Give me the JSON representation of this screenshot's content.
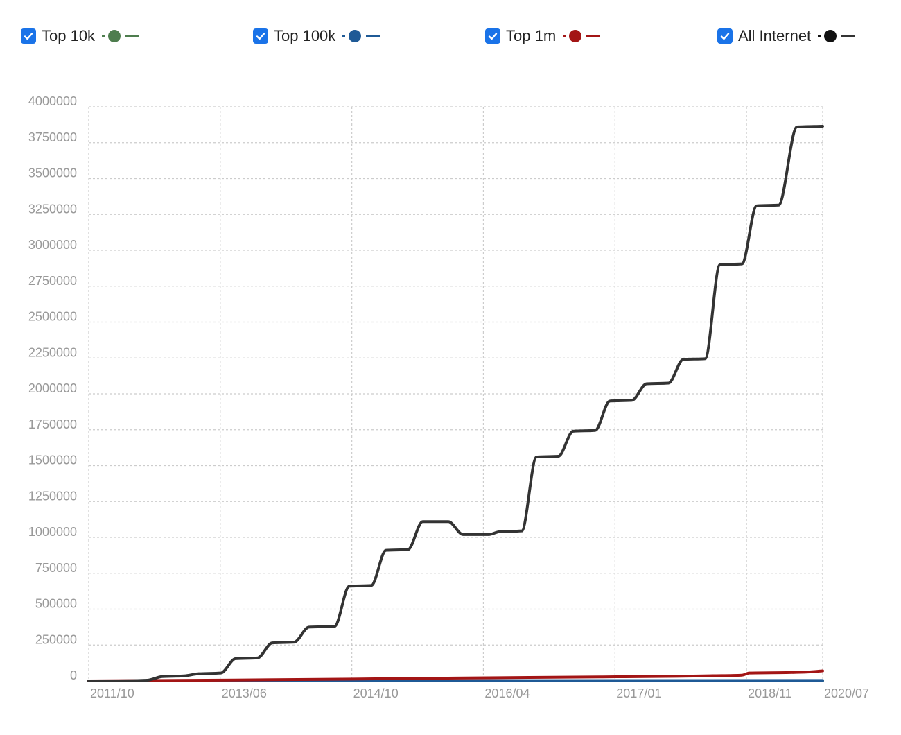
{
  "legend": [
    {
      "label": "Top 10k",
      "color": "#4e7d4e"
    },
    {
      "label": "Top 100k",
      "color": "#1f5a96"
    },
    {
      "label": "Top 1m",
      "color": "#a31515"
    },
    {
      "label": "All Internet",
      "color": "#111111"
    }
  ],
  "chart_data": {
    "type": "line",
    "title": "",
    "xlabel": "",
    "ylabel": "",
    "ylim": [
      0,
      4000000
    ],
    "xlim": [
      0,
      1
    ],
    "grid": true,
    "legend_position": "top",
    "y_ticks": [
      {
        "label": "4000000",
        "value": 4000000
      },
      {
        "label": "3750000",
        "value": 3750000
      },
      {
        "label": "3500000",
        "value": 3500000
      },
      {
        "label": "3250000",
        "value": 3250000
      },
      {
        "label": "3000000",
        "value": 3000000
      },
      {
        "label": "2750000",
        "value": 2750000
      },
      {
        "label": "2500000",
        "value": 2500000
      },
      {
        "label": "2250000",
        "value": 2250000
      },
      {
        "label": "2000000",
        "value": 2000000
      },
      {
        "label": "1750000",
        "value": 1750000
      },
      {
        "label": "1500000",
        "value": 1500000
      },
      {
        "label": "1250000",
        "value": 1250000
      },
      {
        "label": "1000000",
        "value": 1000000
      },
      {
        "label": "750000",
        "value": 750000
      },
      {
        "label": "500000",
        "value": 500000
      },
      {
        "label": "250000",
        "value": 250000
      },
      {
        "label": "0",
        "value": 0
      }
    ],
    "x_ticks": [
      {
        "label": "2011/10",
        "pos": 0.0
      },
      {
        "label": "2013/06",
        "pos": 0.1792
      },
      {
        "label": "2014/10",
        "pos": 0.3585
      },
      {
        "label": "2016/04",
        "pos": 0.5377
      },
      {
        "label": "2017/01",
        "pos": 0.717
      },
      {
        "label": "2018/11",
        "pos": 0.8962
      },
      {
        "label": "2020/07",
        "pos": 1.0
      }
    ],
    "series": [
      {
        "name": "All Internet",
        "color": "#333333",
        "points": [
          [
            0.0,
            0
          ],
          [
            0.04,
            0
          ],
          [
            0.08,
            5000
          ],
          [
            0.1,
            30000
          ],
          [
            0.13,
            35000
          ],
          [
            0.15,
            50000
          ],
          [
            0.18,
            55000
          ],
          [
            0.2,
            155000
          ],
          [
            0.23,
            160000
          ],
          [
            0.25,
            265000
          ],
          [
            0.28,
            270000
          ],
          [
            0.3,
            375000
          ],
          [
            0.335,
            380000
          ],
          [
            0.355,
            660000
          ],
          [
            0.385,
            665000
          ],
          [
            0.405,
            910000
          ],
          [
            0.435,
            915000
          ],
          [
            0.455,
            1110000
          ],
          [
            0.49,
            1110000
          ],
          [
            0.51,
            1020000
          ],
          [
            0.545,
            1020000
          ],
          [
            0.56,
            1040000
          ],
          [
            0.59,
            1045000
          ],
          [
            0.61,
            1560000
          ],
          [
            0.64,
            1565000
          ],
          [
            0.66,
            1740000
          ],
          [
            0.69,
            1745000
          ],
          [
            0.71,
            1950000
          ],
          [
            0.74,
            1955000
          ],
          [
            0.76,
            2070000
          ],
          [
            0.79,
            2075000
          ],
          [
            0.81,
            2240000
          ],
          [
            0.84,
            2245000
          ],
          [
            0.86,
            2900000
          ],
          [
            0.89,
            2905000
          ],
          [
            0.91,
            3310000
          ],
          [
            0.94,
            3315000
          ],
          [
            0.965,
            3860000
          ],
          [
            1.0,
            3865000
          ]
        ]
      },
      {
        "name": "Top 1m",
        "color": "#a31515",
        "points": [
          [
            0.0,
            0
          ],
          [
            0.1,
            3000
          ],
          [
            0.2,
            6000
          ],
          [
            0.3,
            10000
          ],
          [
            0.4,
            15000
          ],
          [
            0.5,
            20000
          ],
          [
            0.6,
            24000
          ],
          [
            0.7,
            28000
          ],
          [
            0.8,
            32000
          ],
          [
            0.85,
            36000
          ],
          [
            0.89,
            40000
          ],
          [
            0.9,
            55000
          ],
          [
            0.95,
            58000
          ],
          [
            0.98,
            62000
          ],
          [
            1.0,
            70000
          ]
        ]
      },
      {
        "name": "Top 100k",
        "color": "#1f5a96",
        "points": [
          [
            0.0,
            0
          ],
          [
            0.5,
            1500
          ],
          [
            1.0,
            3000
          ]
        ]
      },
      {
        "name": "Top 10k",
        "color": "#4e7d4e",
        "points": [
          [
            0.0,
            0
          ],
          [
            1.0,
            400
          ]
        ]
      }
    ]
  }
}
